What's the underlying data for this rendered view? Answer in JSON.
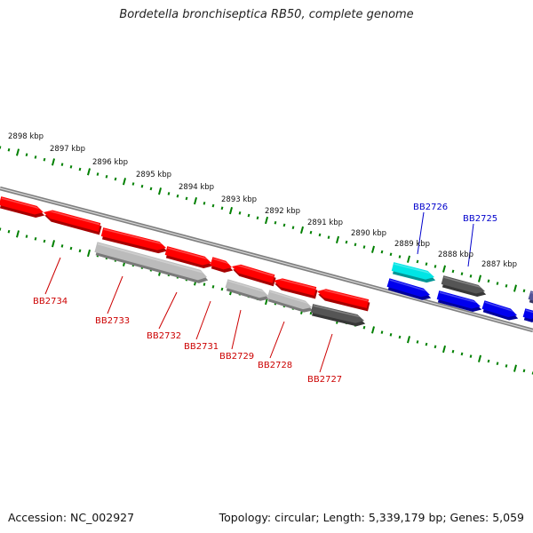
{
  "title": "Bordetella bronchiseptica RB50, complete genome",
  "footer": {
    "accession": "Accession: NC_002927",
    "summary": "Topology: circular; Length: 5,339,179 bp; Genes: 5,059"
  },
  "colors": {
    "tick": "#008000",
    "backbone": "#808080",
    "label_red": "#cc0000",
    "label_blue": "#0000cc",
    "gene_red": "#ff0000",
    "gene_gray": "#bbbbbb",
    "gene_dark": "#555555",
    "gene_cyan": "#00e5e5",
    "gene_blue": "#0000ee",
    "gene_purple": "#555599"
  },
  "kbp_labels": [
    "2898 kbp",
    "2897 kbp",
    "2896 kbp",
    "2895 kbp",
    "2894 kbp",
    "2893 kbp",
    "2892 kbp",
    "2891 kbp",
    "2890 kbp",
    "2889 kbp",
    "2888 kbp",
    "2887 kbp"
  ],
  "gene_labels": {
    "red": [
      "BB2734",
      "BB2733",
      "BB2732",
      "BB2731",
      "BB2729",
      "BB2728",
      "BB2727"
    ],
    "blue": [
      "BB2726",
      "BB2725"
    ]
  }
}
